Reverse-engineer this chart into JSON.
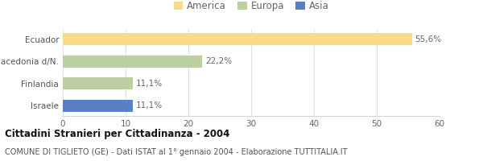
{
  "categories": [
    "Ecuador",
    "Macedonia d/N.",
    "Finlandia",
    "Israele"
  ],
  "values": [
    55.6,
    22.2,
    11.1,
    11.1
  ],
  "labels": [
    "55,6%",
    "22,2%",
    "11,1%",
    "11,1%"
  ],
  "colors": [
    "#FAD98B",
    "#BCCFA0",
    "#BCCFA0",
    "#5B7FC4"
  ],
  "legend": [
    {
      "label": "America",
      "color": "#FAD98B"
    },
    {
      "label": "Europa",
      "color": "#BCCFA0"
    },
    {
      "label": "Asia",
      "color": "#5B7FC4"
    }
  ],
  "xlim": [
    0,
    60
  ],
  "xticks": [
    0,
    10,
    20,
    30,
    40,
    50,
    60
  ],
  "title_bold": "Cittadini Stranieri per Cittadinanza - 2004",
  "subtitle": "COMUNE DI TIGLIETO (GE) - Dati ISTAT al 1° gennaio 2004 - Elaborazione TUTTITALIA.IT",
  "background_color": "#ffffff",
  "bar_height": 0.55,
  "label_fontsize": 7.5,
  "title_fontsize": 8.5,
  "subtitle_fontsize": 7,
  "legend_fontsize": 8.5,
  "tick_fontsize": 7.5,
  "ytick_fontsize": 7.5
}
